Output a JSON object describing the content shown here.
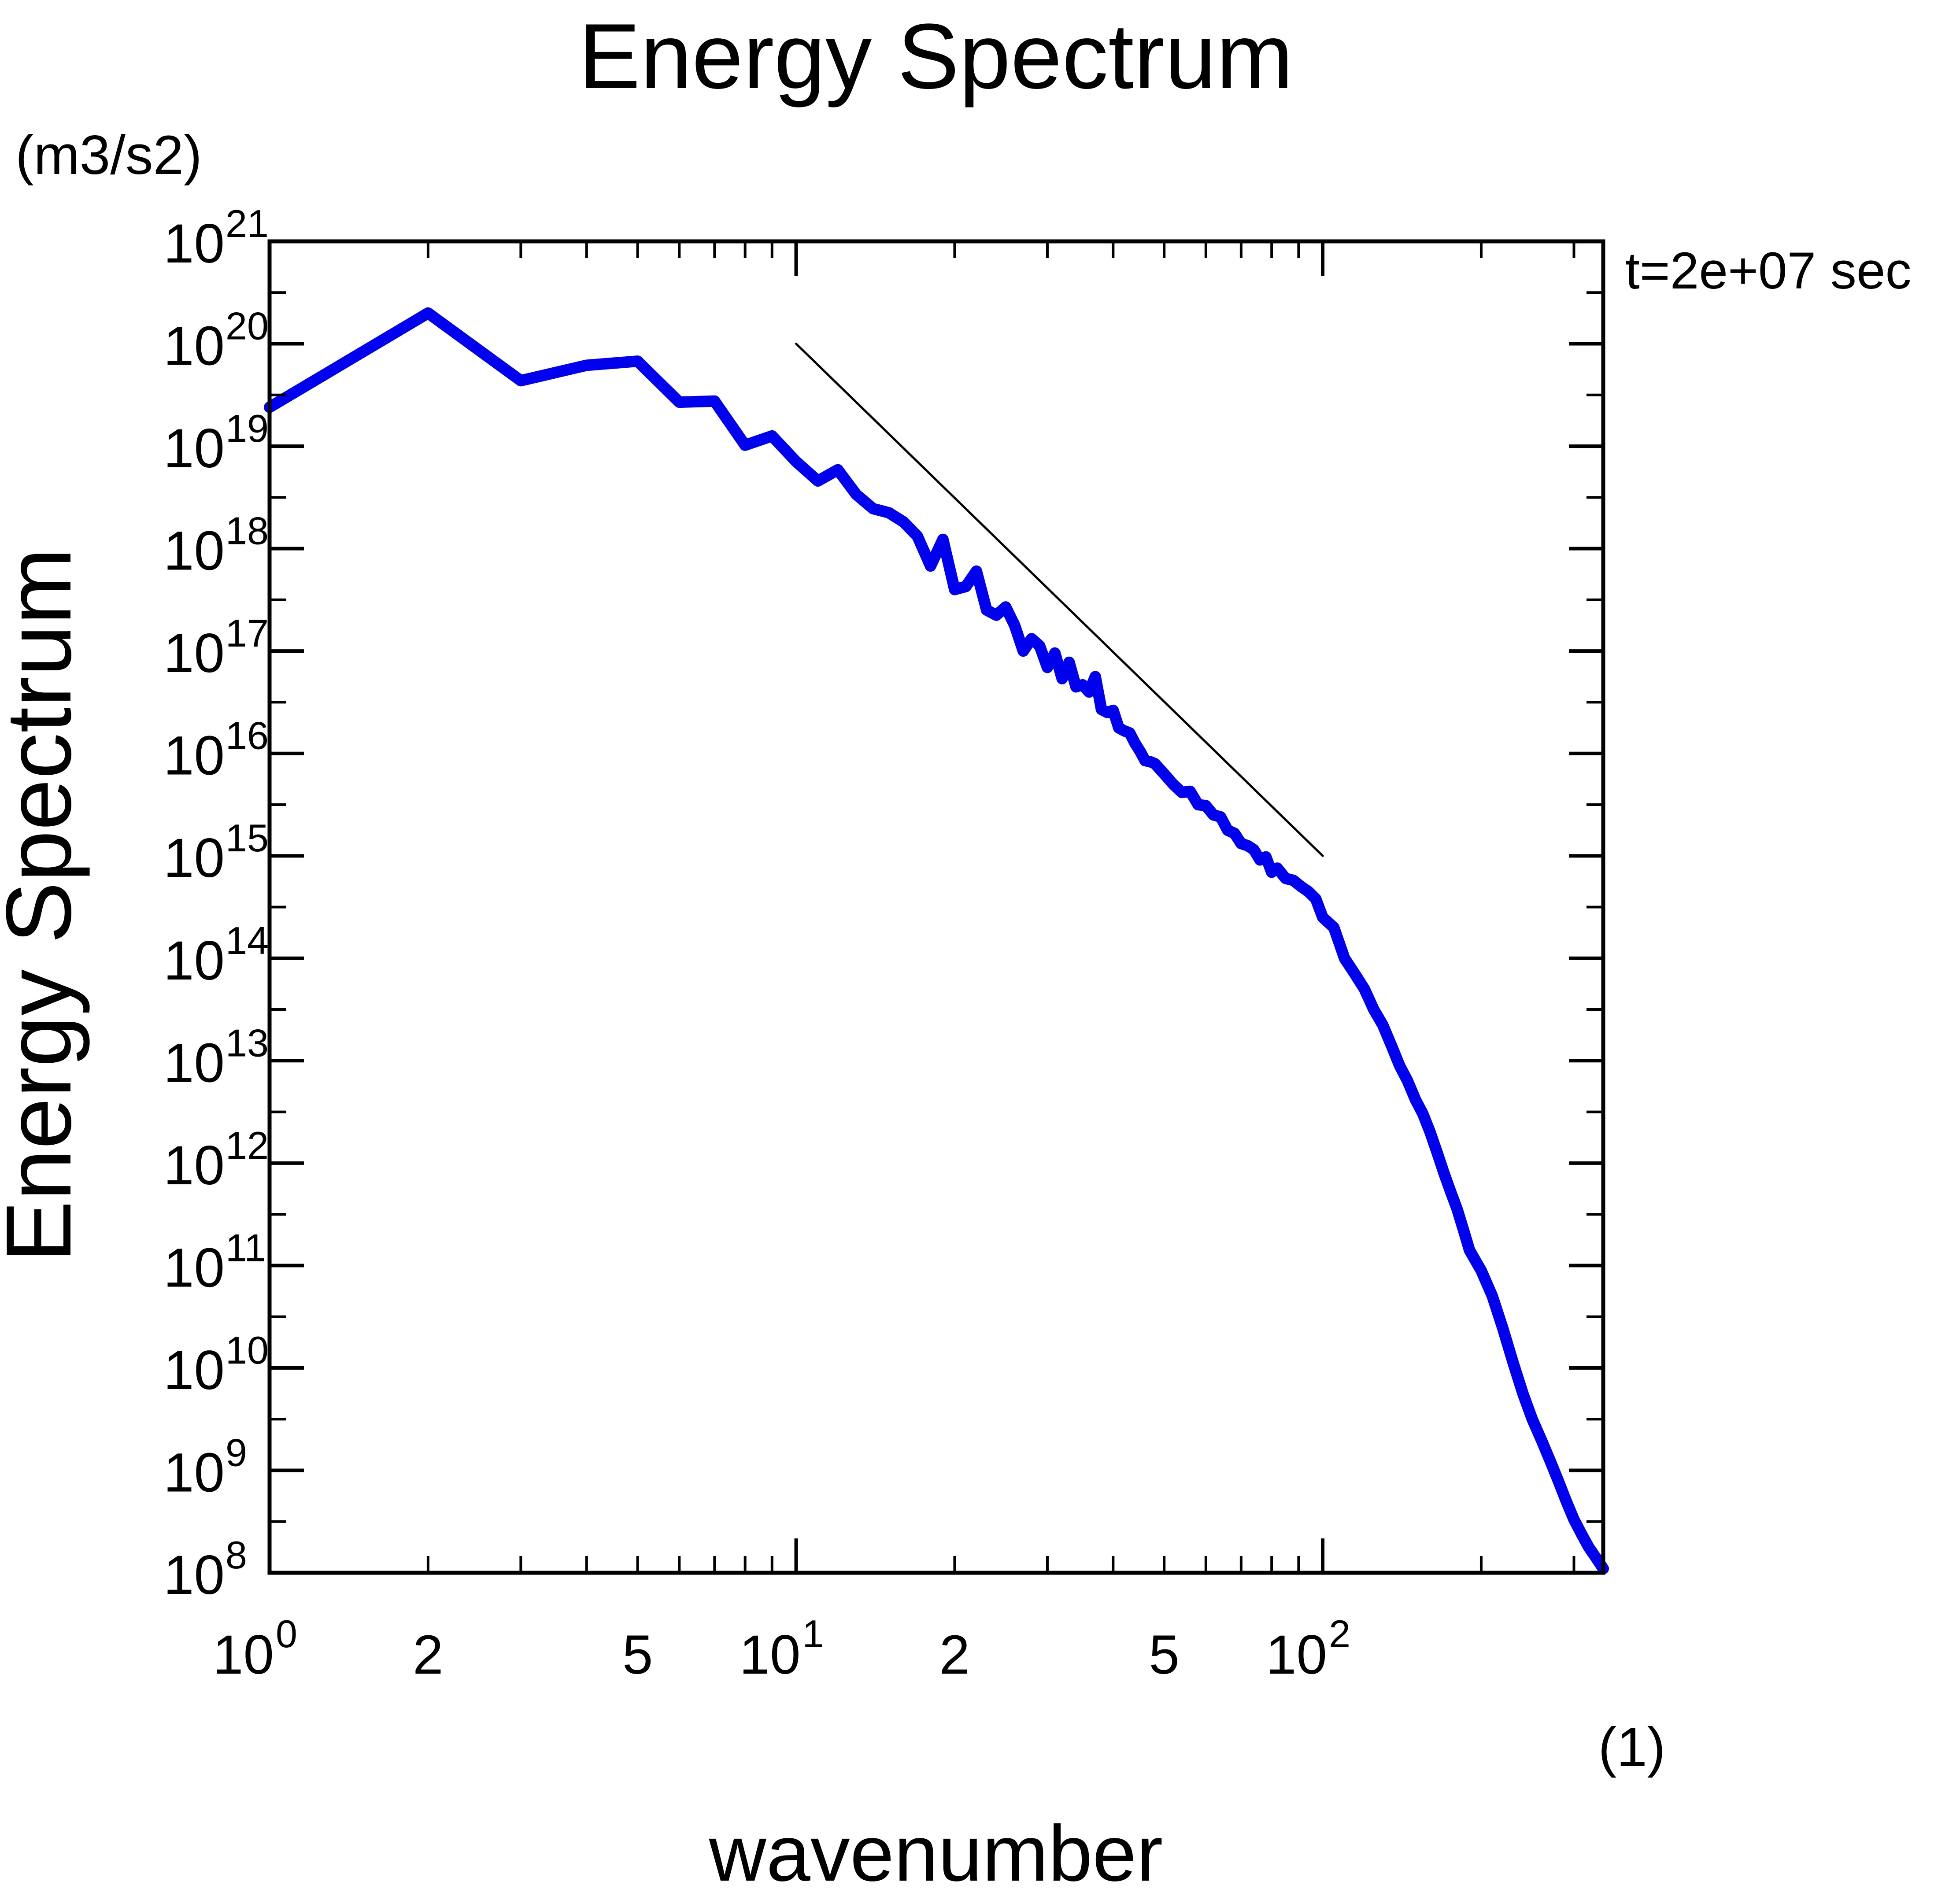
{
  "chart_data": {
    "type": "line",
    "title": "Energy Spectrum",
    "xlabel": "wavenumber",
    "xunits": "(1)",
    "ylabel": "Energy Spectrum",
    "yunits": "(m3/s2)",
    "annotation": "t=2e+07 sec",
    "xscale": "log",
    "yscale": "log",
    "xlim": [
      1,
      341
    ],
    "ylim_exp": [
      8,
      21
    ],
    "x_ticks": [
      {
        "x": 1,
        "base": "10",
        "exp": "0"
      },
      {
        "x": 2,
        "base": "2",
        "exp": ""
      },
      {
        "x": 5,
        "base": "5",
        "exp": ""
      },
      {
        "x": 10,
        "base": "10",
        "exp": "1"
      },
      {
        "x": 20,
        "base": "2",
        "exp": ""
      },
      {
        "x": 50,
        "base": "5",
        "exp": ""
      },
      {
        "x": 100,
        "base": "10",
        "exp": "2"
      }
    ],
    "y_ticks": [
      {
        "exp": 21,
        "base": "10",
        "sup": "21"
      },
      {
        "exp": 20,
        "base": "10",
        "sup": "20"
      },
      {
        "exp": 19,
        "base": "10",
        "sup": "19"
      },
      {
        "exp": 18,
        "base": "10",
        "sup": "18"
      },
      {
        "exp": 17,
        "base": "10",
        "sup": "17"
      },
      {
        "exp": 16,
        "base": "10",
        "sup": "16"
      },
      {
        "exp": 15,
        "base": "10",
        "sup": "15"
      },
      {
        "exp": 14,
        "base": "10",
        "sup": "14"
      },
      {
        "exp": 13,
        "base": "10",
        "sup": "13"
      },
      {
        "exp": 12,
        "base": "10",
        "sup": "12"
      },
      {
        "exp": 11,
        "base": "10",
        "sup": "11"
      },
      {
        "exp": 10,
        "base": "10",
        "sup": "10"
      },
      {
        "exp": 9,
        "base": "10",
        "sup": "9"
      },
      {
        "exp": 8,
        "base": "10",
        "sup": "8"
      }
    ],
    "series": [
      {
        "name": "energy spectrum",
        "color": "#0000ee",
        "points": [
          [
            1,
            19.38
          ],
          [
            2,
            20.3
          ],
          [
            3,
            19.64
          ],
          [
            4,
            19.79
          ],
          [
            5,
            19.83
          ],
          [
            6,
            19.43
          ],
          [
            7,
            19.44
          ],
          [
            8,
            19.01
          ],
          [
            9,
            19.1
          ],
          [
            10,
            18.85
          ],
          [
            11,
            18.66
          ],
          [
            12,
            18.77
          ],
          [
            13,
            18.53
          ],
          [
            14,
            18.39
          ],
          [
            15,
            18.35
          ],
          [
            16,
            18.26
          ],
          [
            17,
            18.12
          ],
          [
            18,
            17.83
          ],
          [
            19,
            18.09
          ],
          [
            20,
            17.6
          ],
          [
            21,
            17.63
          ],
          [
            22,
            17.78
          ],
          [
            23,
            17.4
          ],
          [
            24,
            17.35
          ],
          [
            25,
            17.43
          ],
          [
            26,
            17.25
          ],
          [
            27,
            17.0
          ],
          [
            28,
            17.12
          ],
          [
            29,
            17.05
          ],
          [
            30,
            16.84
          ],
          [
            31,
            16.98
          ],
          [
            32,
            16.73
          ],
          [
            33,
            16.89
          ],
          [
            34,
            16.65
          ],
          [
            35,
            16.67
          ],
          [
            36,
            16.6
          ],
          [
            37,
            16.75
          ],
          [
            38,
            16.43
          ],
          [
            39,
            16.4
          ],
          [
            40,
            16.42
          ],
          [
            41,
            16.25
          ],
          [
            42,
            16.22
          ],
          [
            43,
            16.2
          ],
          [
            44,
            16.1
          ],
          [
            45,
            16.02
          ],
          [
            46,
            15.93
          ],
          [
            47,
            15.92
          ],
          [
            48,
            15.9
          ],
          [
            50,
            15.8
          ],
          [
            52,
            15.7
          ],
          [
            54,
            15.62
          ],
          [
            56,
            15.63
          ],
          [
            58,
            15.5
          ],
          [
            60,
            15.49
          ],
          [
            62,
            15.4
          ],
          [
            64,
            15.38
          ],
          [
            66,
            15.25
          ],
          [
            68,
            15.22
          ],
          [
            70,
            15.12
          ],
          [
            72,
            15.1
          ],
          [
            74,
            15.06
          ],
          [
            76,
            14.96
          ],
          [
            78,
            14.99
          ],
          [
            80,
            14.84
          ],
          [
            82,
            14.88
          ],
          [
            85,
            14.78
          ],
          [
            88,
            14.76
          ],
          [
            91,
            14.7
          ],
          [
            94,
            14.65
          ],
          [
            97,
            14.58
          ],
          [
            100,
            14.4
          ],
          [
            105,
            14.3
          ],
          [
            110,
            14.0
          ],
          [
            115,
            13.85
          ],
          [
            120,
            13.7
          ],
          [
            125,
            13.5
          ],
          [
            130,
            13.35
          ],
          [
            135,
            13.15
          ],
          [
            140,
            12.95
          ],
          [
            145,
            12.8
          ],
          [
            150,
            12.62
          ],
          [
            155,
            12.48
          ],
          [
            160,
            12.3
          ],
          [
            165,
            12.1
          ],
          [
            170,
            11.9
          ],
          [
            175,
            11.72
          ],
          [
            180,
            11.55
          ],
          [
            185,
            11.35
          ],
          [
            190,
            11.15
          ],
          [
            200,
            10.95
          ],
          [
            210,
            10.7
          ],
          [
            220,
            10.38
          ],
          [
            230,
            10.05
          ],
          [
            240,
            9.75
          ],
          [
            250,
            9.5
          ],
          [
            260,
            9.3
          ],
          [
            270,
            9.1
          ],
          [
            280,
            8.9
          ],
          [
            290,
            8.7
          ],
          [
            300,
            8.52
          ],
          [
            310,
            8.38
          ],
          [
            320,
            8.25
          ],
          [
            330,
            8.15
          ],
          [
            341,
            8.04
          ]
        ]
      },
      {
        "name": "reference slope",
        "color": "#000000",
        "points": [
          [
            10,
            20.0
          ],
          [
            100,
            15.0
          ]
        ]
      }
    ]
  }
}
